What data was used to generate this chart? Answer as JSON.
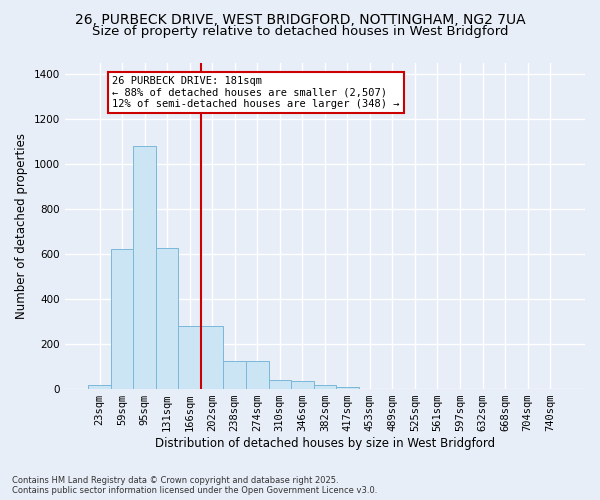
{
  "title_line1": "26, PURBECK DRIVE, WEST BRIDGFORD, NOTTINGHAM, NG2 7UA",
  "title_line2": "Size of property relative to detached houses in West Bridgford",
  "xlabel": "Distribution of detached houses by size in West Bridgford",
  "ylabel": "Number of detached properties",
  "bar_labels": [
    "23sqm",
    "59sqm",
    "95sqm",
    "131sqm",
    "166sqm",
    "202sqm",
    "238sqm",
    "274sqm",
    "310sqm",
    "346sqm",
    "382sqm",
    "417sqm",
    "453sqm",
    "489sqm",
    "525sqm",
    "561sqm",
    "597sqm",
    "632sqm",
    "668sqm",
    "704sqm",
    "740sqm"
  ],
  "bar_values": [
    20,
    620,
    1080,
    625,
    280,
    280,
    125,
    125,
    40,
    35,
    20,
    8,
    0,
    0,
    0,
    0,
    0,
    0,
    0,
    0,
    0
  ],
  "bar_color": "#cce5f5",
  "bar_edge_color": "#7ab8d9",
  "property_line_x": 4.5,
  "annotation_text": "26 PURBECK DRIVE: 181sqm\n← 88% of detached houses are smaller (2,507)\n12% of semi-detached houses are larger (348) →",
  "annotation_box_color": "#ffffff",
  "annotation_box_edge": "#cc0000",
  "vline_color": "#cc0000",
  "ylim": [
    0,
    1450
  ],
  "yticks": [
    0,
    200,
    400,
    600,
    800,
    1000,
    1200,
    1400
  ],
  "background_color": "#e8eef8",
  "grid_color": "#ffffff",
  "footer_text": "Contains HM Land Registry data © Crown copyright and database right 2025.\nContains public sector information licensed under the Open Government Licence v3.0.",
  "title_fontsize": 10,
  "subtitle_fontsize": 9.5,
  "axis_label_fontsize": 8.5,
  "tick_fontsize": 7.5,
  "annotation_fontsize": 7.5
}
